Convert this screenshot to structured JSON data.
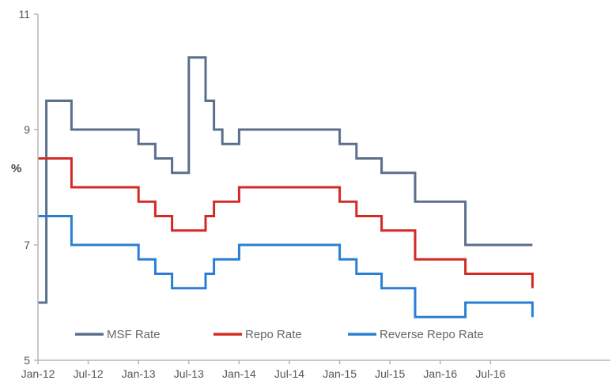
{
  "chart_data": {
    "type": "line",
    "title": "",
    "xlabel": "",
    "ylabel": "%",
    "ylim": [
      5,
      11
    ],
    "yticks": [
      5,
      7,
      9,
      11
    ],
    "xlim": [
      "2012-01",
      "2016-12"
    ],
    "xticks": [
      "Jan-12",
      "Jul-12",
      "Jan-13",
      "Jul-13",
      "Jan-14",
      "Jul-14",
      "Jan-15",
      "Jul-15",
      "Jan-16",
      "Jul-16"
    ],
    "grid": false,
    "legend_position": "bottom",
    "series": [
      {
        "name": "MSF Rate",
        "color": "#5b6f8c",
        "points": [
          [
            "2012-01",
            6.0
          ],
          [
            "2012-02",
            9.5
          ],
          [
            "2012-05",
            9.0
          ],
          [
            "2013-01",
            8.75
          ],
          [
            "2013-03",
            8.5
          ],
          [
            "2013-05",
            8.25
          ],
          [
            "2013-07",
            10.25
          ],
          [
            "2013-09",
            9.5
          ],
          [
            "2013-10",
            9.0
          ],
          [
            "2013-11",
            8.75
          ],
          [
            "2014-01",
            9.0
          ],
          [
            "2015-01",
            8.75
          ],
          [
            "2015-03",
            8.5
          ],
          [
            "2015-06",
            8.25
          ],
          [
            "2015-10",
            7.75
          ],
          [
            "2016-04",
            7.0
          ],
          [
            "2016-12",
            7.0
          ]
        ]
      },
      {
        "name": "Repo Rate",
        "color": "#d42a24",
        "points": [
          [
            "2012-01",
            8.5
          ],
          [
            "2012-05",
            8.0
          ],
          [
            "2013-01",
            7.75
          ],
          [
            "2013-03",
            7.5
          ],
          [
            "2013-05",
            7.25
          ],
          [
            "2013-09",
            7.5
          ],
          [
            "2013-10",
            7.75
          ],
          [
            "2014-01",
            8.0
          ],
          [
            "2015-01",
            7.75
          ],
          [
            "2015-03",
            7.5
          ],
          [
            "2015-06",
            7.25
          ],
          [
            "2015-10",
            6.75
          ],
          [
            "2016-04",
            6.5
          ],
          [
            "2016-12",
            6.25
          ]
        ]
      },
      {
        "name": "Reverse Repo Rate",
        "color": "#2a7fd4",
        "points": [
          [
            "2012-01",
            7.5
          ],
          [
            "2012-05",
            7.0
          ],
          [
            "2013-01",
            6.75
          ],
          [
            "2013-03",
            6.5
          ],
          [
            "2013-05",
            6.25
          ],
          [
            "2013-09",
            6.5
          ],
          [
            "2013-10",
            6.75
          ],
          [
            "2014-01",
            7.0
          ],
          [
            "2015-01",
            6.75
          ],
          [
            "2015-03",
            6.5
          ],
          [
            "2015-06",
            6.25
          ],
          [
            "2015-10",
            5.75
          ],
          [
            "2016-04",
            6.0
          ],
          [
            "2016-12",
            5.75
          ]
        ]
      }
    ]
  }
}
